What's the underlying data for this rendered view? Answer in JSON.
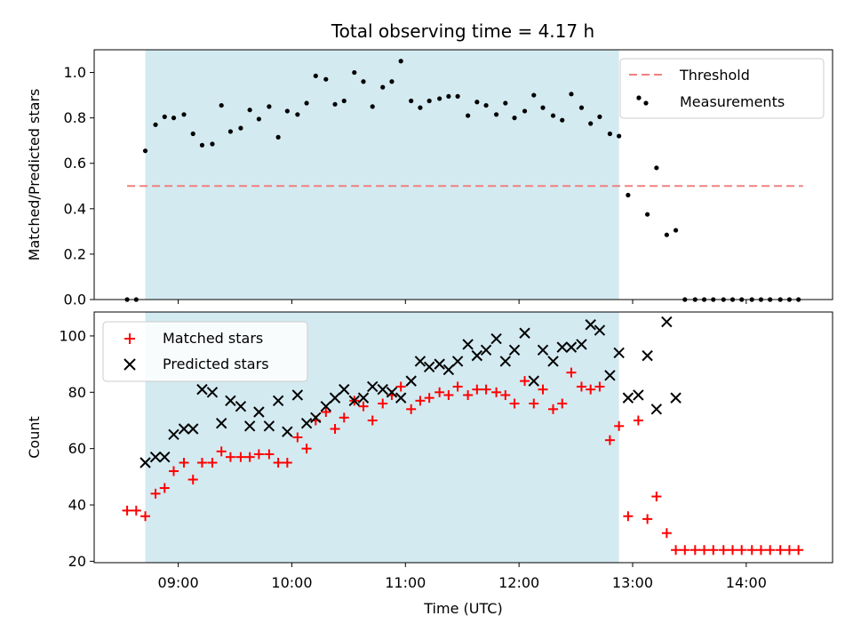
{
  "chart_data": {
    "type": "scatter",
    "title": "Total observing time = 4.17 h",
    "xlabel": "Time (UTC)",
    "x_tick_labels": [
      "09:00",
      "10:00",
      "11:00",
      "12:00",
      "13:00",
      "14:00"
    ],
    "x_ticks_hours": [
      9,
      10,
      11,
      12,
      13,
      14
    ],
    "xlim_hours": [
      8.26,
      14.76
    ],
    "observing_window_hours": [
      8.71,
      12.88
    ],
    "window_color": "#d3eaf1",
    "panels": [
      {
        "ylabel": "Matched/Predicted stars",
        "ylim": [
          0,
          1.1
        ],
        "y_ticks": [
          0.0,
          0.2,
          0.4,
          0.6,
          0.8,
          1.0
        ],
        "y_tick_labels": [
          "0.0",
          "0.2",
          "0.4",
          "0.6",
          "0.8",
          "1.0"
        ],
        "legend_position": "upper right",
        "threshold": {
          "name": "Threshold",
          "value": 0.5,
          "x_range_hours": [
            8.55,
            14.5
          ],
          "color": "#f08080"
        },
        "series": [
          {
            "name": "Measurements",
            "marker": "dot",
            "color": "#000000",
            "points": [
              [
                8.55,
                0.0
              ],
              [
                8.63,
                0.0
              ],
              [
                8.71,
                0.655
              ],
              [
                8.8,
                0.77
              ],
              [
                8.88,
                0.805
              ],
              [
                8.96,
                0.8
              ],
              [
                9.05,
                0.815
              ],
              [
                9.13,
                0.73
              ],
              [
                9.21,
                0.68
              ],
              [
                9.3,
                0.685
              ],
              [
                9.38,
                0.855
              ],
              [
                9.46,
                0.74
              ],
              [
                9.55,
                0.755
              ],
              [
                9.63,
                0.835
              ],
              [
                9.71,
                0.795
              ],
              [
                9.8,
                0.85
              ],
              [
                9.88,
                0.715
              ],
              [
                9.96,
                0.83
              ],
              [
                10.05,
                0.815
              ],
              [
                10.13,
                0.865
              ],
              [
                10.21,
                0.985
              ],
              [
                10.3,
                0.97
              ],
              [
                10.38,
                0.86
              ],
              [
                10.46,
                0.875
              ],
              [
                10.55,
                1.0
              ],
              [
                10.63,
                0.96
              ],
              [
                10.71,
                0.85
              ],
              [
                10.8,
                0.935
              ],
              [
                10.88,
                0.96
              ],
              [
                10.96,
                1.05
              ],
              [
                11.05,
                0.875
              ],
              [
                11.13,
                0.845
              ],
              [
                11.21,
                0.875
              ],
              [
                11.3,
                0.885
              ],
              [
                11.38,
                0.895
              ],
              [
                11.46,
                0.895
              ],
              [
                11.55,
                0.81
              ],
              [
                11.63,
                0.87
              ],
              [
                11.71,
                0.855
              ],
              [
                11.8,
                0.815
              ],
              [
                11.88,
                0.865
              ],
              [
                11.96,
                0.8
              ],
              [
                12.05,
                0.83
              ],
              [
                12.13,
                0.9
              ],
              [
                12.21,
                0.845
              ],
              [
                12.3,
                0.81
              ],
              [
                12.38,
                0.79
              ],
              [
                12.46,
                0.905
              ],
              [
                12.55,
                0.845
              ],
              [
                12.63,
                0.775
              ],
              [
                12.71,
                0.805
              ],
              [
                12.8,
                0.73
              ],
              [
                12.88,
                0.72
              ],
              [
                12.96,
                0.46
              ],
              [
                13.05,
                0.885
              ],
              [
                13.13,
                0.375
              ],
              [
                13.21,
                0.58
              ],
              [
                13.3,
                0.285
              ],
              [
                13.38,
                0.305
              ],
              [
                13.46,
                0.0
              ],
              [
                13.55,
                0.0
              ],
              [
                13.63,
                0.0
              ],
              [
                13.71,
                0.0
              ],
              [
                13.8,
                0.0
              ],
              [
                13.88,
                0.0
              ],
              [
                13.96,
                0.0
              ],
              [
                14.05,
                0.0
              ],
              [
                14.13,
                0.0
              ],
              [
                14.21,
                0.0
              ],
              [
                14.3,
                0.0
              ],
              [
                14.38,
                0.0
              ],
              [
                14.46,
                0.0
              ]
            ]
          }
        ]
      },
      {
        "ylabel": "Count",
        "ylim": [
          19.5,
          108.5
        ],
        "y_ticks": [
          20,
          40,
          60,
          80,
          100
        ],
        "y_tick_labels": [
          "20",
          "40",
          "60",
          "80",
          "100"
        ],
        "legend_position": "upper left",
        "series": [
          {
            "name": "Matched stars",
            "marker": "plus",
            "color": "#ff0000",
            "points": [
              [
                8.55,
                38
              ],
              [
                8.63,
                38
              ],
              [
                8.71,
                36
              ],
              [
                8.8,
                44
              ],
              [
                8.88,
                46
              ],
              [
                8.96,
                52
              ],
              [
                9.05,
                55
              ],
              [
                9.13,
                49
              ],
              [
                9.21,
                55
              ],
              [
                9.3,
                55
              ],
              [
                9.38,
                59
              ],
              [
                9.46,
                57
              ],
              [
                9.55,
                57
              ],
              [
                9.63,
                57
              ],
              [
                9.71,
                58
              ],
              [
                9.8,
                58
              ],
              [
                9.88,
                55
              ],
              [
                9.96,
                55
              ],
              [
                10.05,
                64
              ],
              [
                10.13,
                60
              ],
              [
                10.21,
                70
              ],
              [
                10.3,
                73
              ],
              [
                10.38,
                67
              ],
              [
                10.46,
                71
              ],
              [
                10.55,
                77
              ],
              [
                10.63,
                75
              ],
              [
                10.71,
                70
              ],
              [
                10.8,
                76
              ],
              [
                10.88,
                79
              ],
              [
                10.96,
                82
              ],
              [
                11.05,
                74
              ],
              [
                11.13,
                77
              ],
              [
                11.21,
                78
              ],
              [
                11.3,
                80
              ],
              [
                11.38,
                79
              ],
              [
                11.46,
                82
              ],
              [
                11.55,
                79
              ],
              [
                11.63,
                81
              ],
              [
                11.71,
                81
              ],
              [
                11.8,
                80
              ],
              [
                11.88,
                79
              ],
              [
                11.96,
                76
              ],
              [
                12.05,
                84
              ],
              [
                12.13,
                76
              ],
              [
                12.21,
                81
              ],
              [
                12.3,
                74
              ],
              [
                12.38,
                76
              ],
              [
                12.46,
                87
              ],
              [
                12.55,
                82
              ],
              [
                12.63,
                81
              ],
              [
                12.71,
                82
              ],
              [
                12.8,
                63
              ],
              [
                12.88,
                68
              ],
              [
                12.96,
                36
              ],
              [
                13.05,
                70
              ],
              [
                13.13,
                35
              ],
              [
                13.21,
                43
              ],
              [
                13.3,
                30
              ],
              [
                13.38,
                24
              ],
              [
                13.46,
                24
              ],
              [
                13.55,
                24
              ],
              [
                13.63,
                24
              ],
              [
                13.71,
                24
              ],
              [
                13.8,
                24
              ],
              [
                13.88,
                24
              ],
              [
                13.96,
                24
              ],
              [
                14.05,
                24
              ],
              [
                14.13,
                24
              ],
              [
                14.21,
                24
              ],
              [
                14.3,
                24
              ],
              [
                14.38,
                24
              ],
              [
                14.46,
                24
              ]
            ]
          },
          {
            "name": "Predicted stars",
            "marker": "x",
            "color": "#000000",
            "points": [
              [
                8.71,
                55
              ],
              [
                8.8,
                57
              ],
              [
                8.88,
                57
              ],
              [
                8.96,
                65
              ],
              [
                9.05,
                67
              ],
              [
                9.13,
                67
              ],
              [
                9.21,
                81
              ],
              [
                9.3,
                80
              ],
              [
                9.38,
                69
              ],
              [
                9.46,
                77
              ],
              [
                9.55,
                75
              ],
              [
                9.63,
                68
              ],
              [
                9.71,
                73
              ],
              [
                9.8,
                68
              ],
              [
                9.88,
                77
              ],
              [
                9.96,
                66
              ],
              [
                10.05,
                79
              ],
              [
                10.13,
                69
              ],
              [
                10.21,
                71
              ],
              [
                10.3,
                75
              ],
              [
                10.38,
                78
              ],
              [
                10.46,
                81
              ],
              [
                10.55,
                77
              ],
              [
                10.63,
                78
              ],
              [
                10.71,
                82
              ],
              [
                10.8,
                81
              ],
              [
                10.88,
                80
              ],
              [
                10.96,
                78
              ],
              [
                11.05,
                84
              ],
              [
                11.13,
                91
              ],
              [
                11.21,
                89
              ],
              [
                11.3,
                90
              ],
              [
                11.38,
                88
              ],
              [
                11.46,
                91
              ],
              [
                11.55,
                97
              ],
              [
                11.63,
                93
              ],
              [
                11.71,
                95
              ],
              [
                11.8,
                99
              ],
              [
                11.88,
                91
              ],
              [
                11.96,
                95
              ],
              [
                12.05,
                101
              ],
              [
                12.13,
                84
              ],
              [
                12.21,
                95
              ],
              [
                12.3,
                91
              ],
              [
                12.38,
                96
              ],
              [
                12.46,
                96
              ],
              [
                12.55,
                97
              ],
              [
                12.63,
                104
              ],
              [
                12.71,
                102
              ],
              [
                12.8,
                86
              ],
              [
                12.88,
                94
              ],
              [
                12.96,
                78
              ],
              [
                13.05,
                79
              ],
              [
                13.13,
                93
              ],
              [
                13.21,
                74
              ],
              [
                13.3,
                105
              ],
              [
                13.38,
                78
              ]
            ]
          }
        ]
      }
    ]
  }
}
